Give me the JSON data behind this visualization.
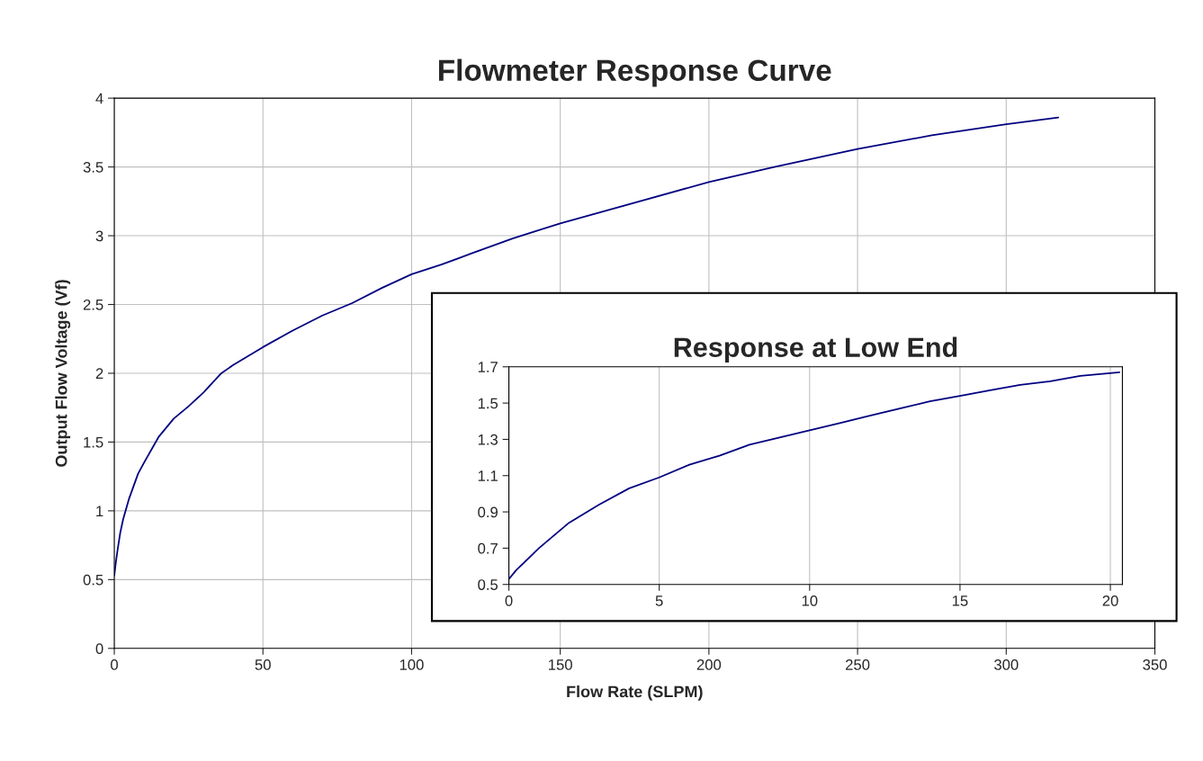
{
  "chart_data": [
    {
      "type": "line",
      "title": "Flowmeter Response Curve",
      "xlabel": "Flow Rate (SLPM)",
      "ylabel": "Output Flow Voltage (Vf)",
      "xlim": [
        0,
        350
      ],
      "xticks": [
        0,
        50,
        100,
        150,
        200,
        250,
        300,
        350
      ],
      "ylim": [
        0,
        4
      ],
      "yticks": [
        0,
        0.5,
        1,
        1.5,
        2,
        2.5,
        3,
        3.5,
        4
      ],
      "grid": true,
      "marker": "none",
      "line_style": "solid",
      "x": [
        0,
        0.5,
        1,
        2,
        3,
        5,
        8,
        10,
        15,
        20,
        25,
        30,
        36,
        40,
        50,
        60,
        70,
        80,
        90,
        100,
        110,
        120,
        134,
        150,
        175,
        200,
        222,
        250,
        275,
        300,
        317.5
      ],
      "series": [
        {
          "color": "#000080",
          "values": [
            0.53,
            0.62,
            0.7,
            0.84,
            0.94,
            1.09,
            1.27,
            1.35,
            1.54,
            1.67,
            1.76,
            1.86,
            2.0,
            2.06,
            2.19,
            2.31,
            2.42,
            2.51,
            2.62,
            2.72,
            2.79,
            2.87,
            2.98,
            3.09,
            3.24,
            3.39,
            3.5,
            3.63,
            3.73,
            3.81,
            3.86
          ]
        }
      ]
    },
    {
      "type": "line",
      "title": "Response at Low End",
      "xlim": [
        0,
        20.4
      ],
      "xticks": [
        0,
        5,
        10,
        15,
        20
      ],
      "ylim": [
        0.5,
        1.7
      ],
      "yticks": [
        0.5,
        0.7,
        0.9,
        1.1,
        1.3,
        1.5,
        1.7
      ],
      "grid": "x",
      "marker": "none",
      "line_style": "solid",
      "x": [
        0,
        0.25,
        0.5,
        1,
        2,
        3,
        4,
        5,
        6,
        7,
        8,
        9,
        10,
        11,
        12,
        13,
        14,
        15,
        16,
        17,
        18,
        19,
        20.3
      ],
      "series": [
        {
          "color": "#000080",
          "values": [
            0.53,
            0.58,
            0.62,
            0.7,
            0.84,
            0.94,
            1.03,
            1.09,
            1.16,
            1.21,
            1.27,
            1.31,
            1.35,
            1.39,
            1.43,
            1.47,
            1.51,
            1.54,
            1.57,
            1.6,
            1.62,
            1.65,
            1.67
          ]
        }
      ]
    }
  ]
}
